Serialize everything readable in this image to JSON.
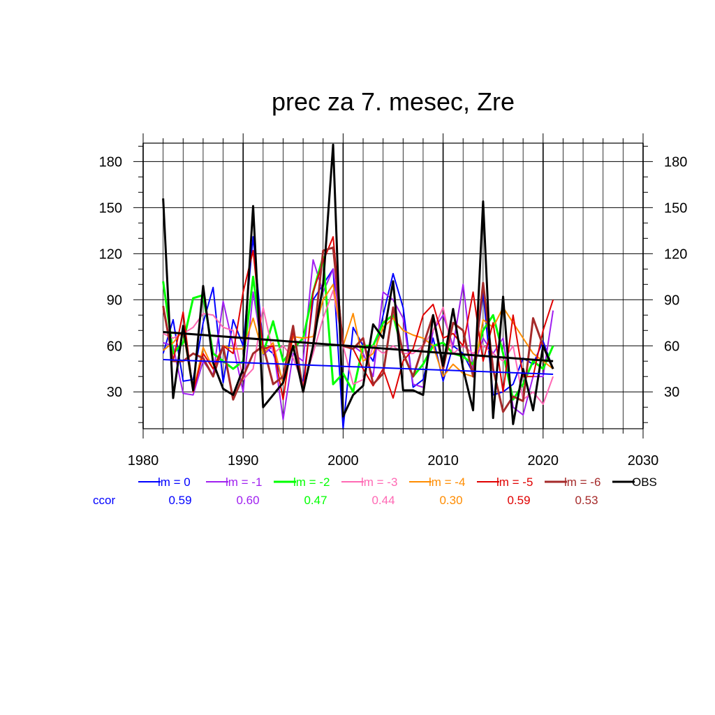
{
  "chart_data": {
    "type": "line",
    "title": "prec za 7. mesec, Zre",
    "xlim": [
      1980,
      2030
    ],
    "ylim": [
      6,
      192
    ],
    "xticks": [
      1980,
      1990,
      2000,
      2010,
      2020,
      2030
    ],
    "yticks": [
      30,
      60,
      90,
      120,
      150,
      180
    ],
    "grid": true,
    "legend_position": "bottom",
    "ccor_label": "ccor",
    "x": [
      1982,
      1983,
      1984,
      1985,
      1986,
      1987,
      1988,
      1989,
      1990,
      1991,
      1992,
      1993,
      1994,
      1995,
      1996,
      1997,
      1998,
      1999,
      2000,
      2001,
      2002,
      2003,
      2004,
      2005,
      2006,
      2007,
      2008,
      2009,
      2010,
      2011,
      2012,
      2013,
      2014,
      2015,
      2016,
      2017,
      2018,
      2019,
      2020,
      2021
    ],
    "series": [
      {
        "name": "lm = 0",
        "ccor": "0.59",
        "color": "#0000ff",
        "width": 2,
        "values": [
          55,
          77,
          37,
          38,
          75,
          98,
          36,
          77,
          60,
          131,
          60,
          55,
          37,
          60,
          35,
          90,
          100,
          110,
          6,
          72,
          60,
          50,
          80,
          107,
          85,
          33,
          38,
          65,
          37,
          60,
          55,
          42,
          95,
          28,
          30,
          35,
          52,
          48,
          63,
          45
        ]
      },
      {
        "name": "lm = -1",
        "ccor": "0.60",
        "color": "#a020f0",
        "width": 2,
        "values": [
          62,
          60,
          29,
          28,
          50,
          41,
          89,
          60,
          30,
          95,
          54,
          60,
          12,
          55,
          50,
          116,
          95,
          110,
          60,
          60,
          55,
          40,
          95,
          90,
          78,
          35,
          33,
          70,
          80,
          60,
          100,
          45,
          65,
          55,
          65,
          20,
          15,
          40,
          40,
          83
        ]
      },
      {
        "name": "lm = -2",
        "ccor": "0.47",
        "color": "#00ff00",
        "width": 3,
        "values": [
          102,
          55,
          62,
          91,
          93,
          55,
          50,
          45,
          50,
          105,
          55,
          76,
          50,
          58,
          65,
          95,
          118,
          35,
          42,
          30,
          60,
          60,
          75,
          80,
          55,
          40,
          48,
          60,
          62,
          55,
          53,
          48,
          70,
          80,
          55,
          25,
          35,
          50,
          45,
          60
        ]
      },
      {
        "name": "lm = -3",
        "ccor": "0.44",
        "color": "#ff69b4",
        "width": 2,
        "values": [
          68,
          65,
          68,
          72,
          81,
          80,
          72,
          70,
          38,
          45,
          85,
          55,
          60,
          52,
          35,
          55,
          78,
          96,
          60,
          35,
          38,
          60,
          55,
          60,
          55,
          55,
          60,
          70,
          85,
          55,
          60,
          55,
          60,
          55,
          50,
          60,
          25,
          30,
          22,
          40
        ]
      },
      {
        "name": "lm = -4",
        "ccor": "0.30",
        "color": "#ff8c00",
        "width": 2,
        "values": [
          57,
          62,
          70,
          30,
          59,
          45,
          60,
          58,
          58,
          78,
          55,
          62,
          35,
          66,
          65,
          66,
          90,
          100,
          60,
          81,
          50,
          55,
          72,
          78,
          70,
          67,
          65,
          60,
          40,
          48,
          42,
          40,
          77,
          72,
          85,
          75,
          65,
          55,
          50,
          45
        ]
      },
      {
        "name": "lm = -5",
        "ccor": "0.59",
        "color": "#e00000",
        "width": 2,
        "values": [
          84,
          50,
          82,
          30,
          55,
          45,
          60,
          55,
          95,
          122,
          58,
          60,
          25,
          70,
          30,
          95,
          115,
          131,
          60,
          58,
          45,
          34,
          45,
          26,
          50,
          58,
          80,
          87,
          65,
          68,
          60,
          95,
          50,
          75,
          30,
          80,
          40,
          40,
          70,
          90
        ]
      },
      {
        "name": "lm = -6",
        "ccor": "0.53",
        "color": "#a52a2a",
        "width": 3,
        "values": [
          86,
          50,
          50,
          55,
          52,
          40,
          60,
          25,
          40,
          55,
          60,
          35,
          40,
          73,
          30,
          60,
          122,
          124,
          60,
          58,
          65,
          35,
          42,
          85,
          55,
          40,
          60,
          80,
          45,
          75,
          70,
          40,
          101,
          45,
          17,
          27,
          24,
          78,
          60,
          45
        ]
      },
      {
        "name": "OBS",
        "ccor": "",
        "color": "#000000",
        "width": 3,
        "values": [
          156,
          26,
          73,
          31,
          99,
          49,
          32,
          28,
          45,
          151,
          20,
          28,
          36,
          60,
          30,
          60,
          100,
          191,
          14,
          28,
          34,
          74,
          65,
          102,
          31,
          31,
          28,
          80,
          47,
          84,
          45,
          18,
          154,
          13,
          92,
          9,
          45,
          18,
          60,
          45
        ]
      }
    ],
    "trend_lines": [
      {
        "label": "lm = 0",
        "color": "#0000ff",
        "width": 2,
        "x": [
          1982,
          2021
        ],
        "y": [
          51,
          41.5
        ]
      },
      {
        "label": "OBS",
        "color": "#000000",
        "width": 3,
        "x": [
          1982,
          2021
        ],
        "y": [
          69,
          50
        ]
      }
    ]
  }
}
